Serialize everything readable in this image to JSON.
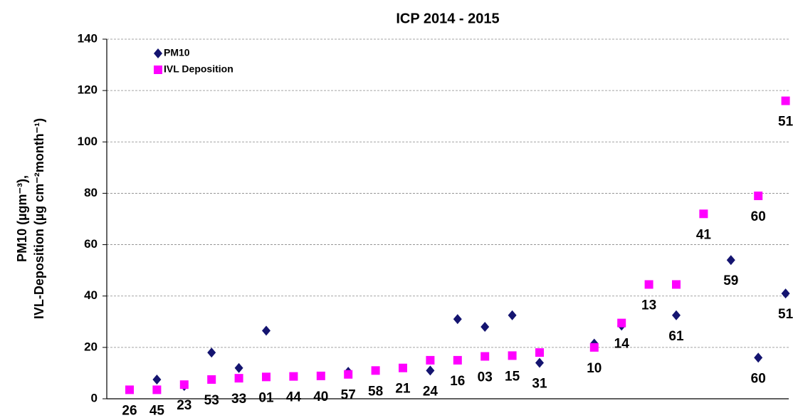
{
  "chart_data": {
    "type": "scatter",
    "title": "ICP 2014 - 2015",
    "ylabel": [
      "PM10 (µgm⁻³),",
      "IVL-Deposition (µg cm⁻²month⁻¹)"
    ],
    "ylim": [
      0,
      140
    ],
    "yticks": [
      0,
      20,
      40,
      60,
      80,
      100,
      120,
      140
    ],
    "grid": true,
    "legend": "upper left",
    "series": [
      {
        "name": "PM10",
        "color": "#141470",
        "marker": "diamond",
        "values": [
          null,
          7.5,
          5,
          18,
          12,
          26.5,
          null,
          null,
          10.5,
          null,
          null,
          11,
          31,
          28,
          32.5,
          14,
          null,
          21.5,
          28.5,
          null,
          32.5,
          null,
          54,
          16,
          41
        ],
        "labels": [
          null,
          null,
          null,
          null,
          null,
          null,
          null,
          null,
          null,
          null,
          null,
          "24",
          null,
          null,
          null,
          "31",
          null,
          null,
          null,
          null,
          "61",
          null,
          "59",
          "60",
          "51"
        ]
      },
      {
        "name": "IVL Deposition",
        "color": "#ff00ff",
        "marker": "square",
        "values": [
          3.5,
          3.5,
          5.5,
          7.5,
          8,
          8.5,
          8.7,
          8.9,
          9.5,
          11,
          12,
          15,
          15,
          16.5,
          16.8,
          18,
          null,
          20,
          29.5,
          44.5,
          44.5,
          72,
          null,
          79,
          116
        ],
        "labels": [
          "26",
          "45",
          "23",
          "53",
          "33",
          "01",
          "44",
          "40",
          "57",
          "58",
          "21",
          null,
          "16",
          "03",
          "15",
          null,
          null,
          "10",
          "14",
          "13",
          null,
          "41",
          null,
          "60",
          "51"
        ]
      }
    ]
  }
}
